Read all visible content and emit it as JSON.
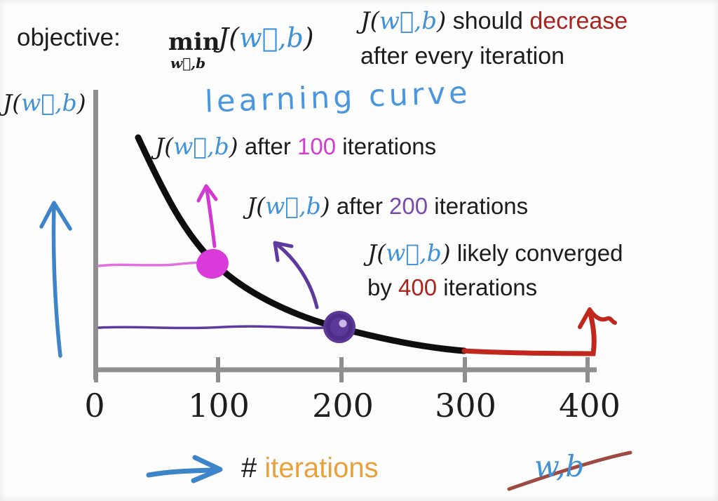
{
  "colors": {
    "math-blue": "#4191d6",
    "hand-blue": "#4a97dd",
    "arrow-blue": "#3d85c8",
    "magenta": "#cf3fd0",
    "magenta-dot": "#d93ad9",
    "magenta-line": "#e06fe0",
    "purple-text": "#7a4bae",
    "purple-ink": "#5c3899",
    "dark-red": "#a8241f",
    "crimson": "#c1271d",
    "maroon": "#9c4a42",
    "orange": "#e9a23b",
    "axis-gray": "#8f8f8f",
    "ink": "#1c1c1c"
  },
  "header": {
    "objective_label": "objective:",
    "min_operator": "min",
    "min_subscript": "w⃗,b",
    "objective_expr": [
      {
        "t": "J(",
        "c": "m"
      },
      {
        "t": "w⃗,b",
        "c": "mb"
      },
      {
        "t": ")",
        "c": "m"
      }
    ],
    "note_line1": [
      {
        "t": "J(",
        "c": "m"
      },
      {
        "t": "w⃗,b",
        "c": "mb"
      },
      {
        "t": ")",
        "c": "m"
      },
      {
        "t": " should ",
        "c": "t"
      },
      {
        "t": "decrease",
        "c": "red"
      }
    ],
    "note_line2": "after every iteration"
  },
  "chart": {
    "title": "learning curve",
    "y_axis_label": [
      {
        "t": "J(",
        "c": "m"
      },
      {
        "t": "w⃗,b",
        "c": "mb"
      },
      {
        "t": ")",
        "c": "m"
      }
    ],
    "annotations": {
      "after_100": [
        {
          "t": "J(",
          "c": "m"
        },
        {
          "t": "w⃗,b",
          "c": "mb"
        },
        {
          "t": ")",
          "c": "m"
        },
        {
          "t": " after ",
          "c": "t"
        },
        {
          "t": "100",
          "c": "mag"
        },
        {
          "t": " iterations",
          "c": "t"
        }
      ],
      "after_200": [
        {
          "t": "J(",
          "c": "m"
        },
        {
          "t": "w⃗,b",
          "c": "mb"
        },
        {
          "t": ")",
          "c": "m"
        },
        {
          "t": " after ",
          "c": "t"
        },
        {
          "t": "200",
          "c": "pur"
        },
        {
          "t": " iterations",
          "c": "t"
        }
      ],
      "converged_line1": [
        {
          "t": "J(",
          "c": "m"
        },
        {
          "t": "w⃗,b",
          "c": "mb"
        },
        {
          "t": ")",
          "c": "m"
        },
        {
          "t": " likely converged",
          "c": "t"
        }
      ],
      "converged_line2": [
        {
          "t": "by ",
          "c": "t"
        },
        {
          "t": "400",
          "c": "red"
        },
        {
          "t": " iterations",
          "c": "t"
        }
      ]
    },
    "x_tick_labels": [
      "0",
      "100",
      "200",
      "300",
      "400"
    ]
  },
  "footer": {
    "x_axis_label": [
      {
        "t": "# ",
        "c": "t"
      },
      {
        "t": "iterations",
        "c": "org"
      }
    ],
    "crossed_out": "w,b"
  },
  "chart_data": {
    "type": "line",
    "title": "learning curve",
    "xlabel": "# iterations",
    "ylabel": "J(w⃗,b)",
    "x_ticks": [
      0,
      100,
      200,
      300,
      400
    ],
    "xlim": [
      0,
      415
    ],
    "y_axis_note": "y axis has no numeric labels; values below are relative cost (1.0 = curve start)",
    "grid": false,
    "legend": false,
    "series": [
      {
        "name": "cost J(w⃗,b) vs iterations",
        "color": "#0e0e0e",
        "x": [
          30,
          60,
          100,
          150,
          200,
          250,
          300,
          350,
          400
        ],
        "y_relative": [
          1.0,
          0.72,
          0.46,
          0.3,
          0.18,
          0.11,
          0.08,
          0.075,
          0.07
        ]
      }
    ],
    "highlights": [
      {
        "x": 100,
        "marker": "filled dot",
        "color": "#d93ad9",
        "note": "J(w⃗,b) after 100 iterations"
      },
      {
        "x": 200,
        "marker": "scribbled dot",
        "color": "#5c3899",
        "note": "J(w⃗,b) after 200 iterations"
      },
      {
        "x_range": [
          300,
          400
        ],
        "marker": "red flat segment with upward arrow at 400",
        "color": "#c1271d",
        "note": "J(w⃗,b) likely converged by 400 iterations"
      }
    ]
  }
}
